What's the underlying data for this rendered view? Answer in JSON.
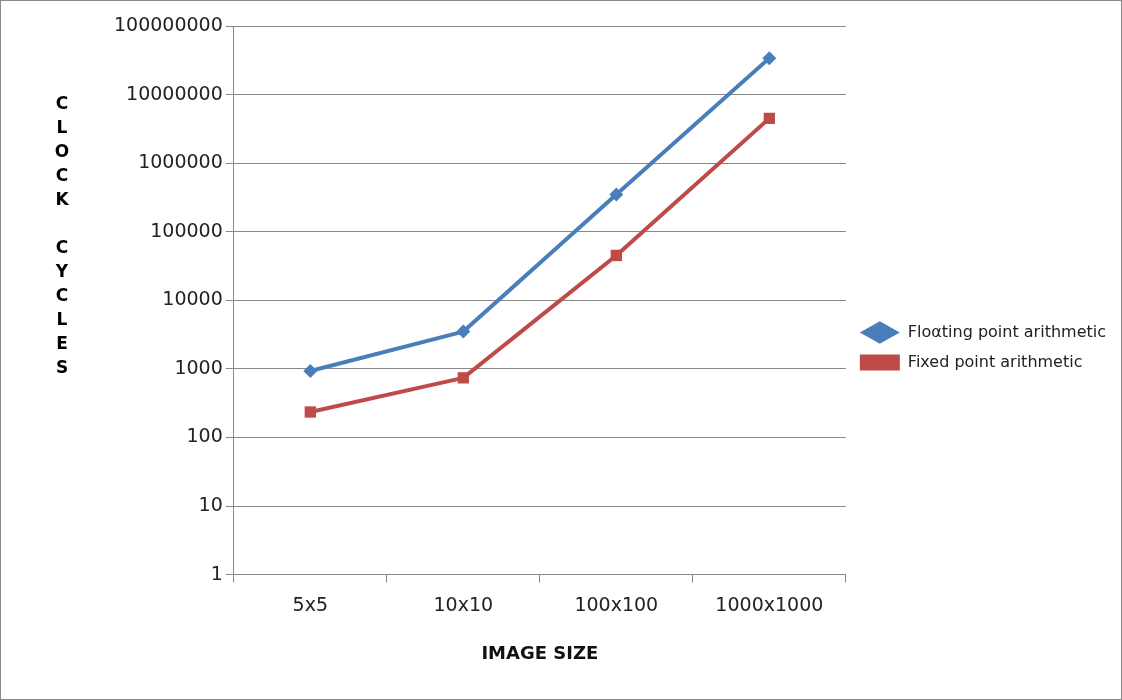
{
  "chart_data": {
    "type": "line",
    "xlabel": "IMAGE SIZE",
    "ylabel": "CLOCK CYCLES",
    "categories": [
      "5x5",
      "10x10",
      "100x100",
      "1000x1000"
    ],
    "series": [
      {
        "name": "Floαting point arithmetic",
        "color": "#4a7ebb",
        "marker": "diamond",
        "values": [
          930,
          3500,
          350000,
          34000000
        ]
      },
      {
        "name": "Fixed point arithmetic",
        "color": "#be4b48",
        "marker": "square",
        "values": [
          235,
          740,
          45000,
          4500000
        ]
      }
    ],
    "log": "y",
    "ylim": [
      1,
      100000000
    ],
    "yticks": [
      1,
      10,
      100,
      1000,
      10000,
      100000,
      1000000,
      10000000,
      100000000
    ],
    "grid": "y",
    "legend": "right",
    "line_style": "solid"
  }
}
